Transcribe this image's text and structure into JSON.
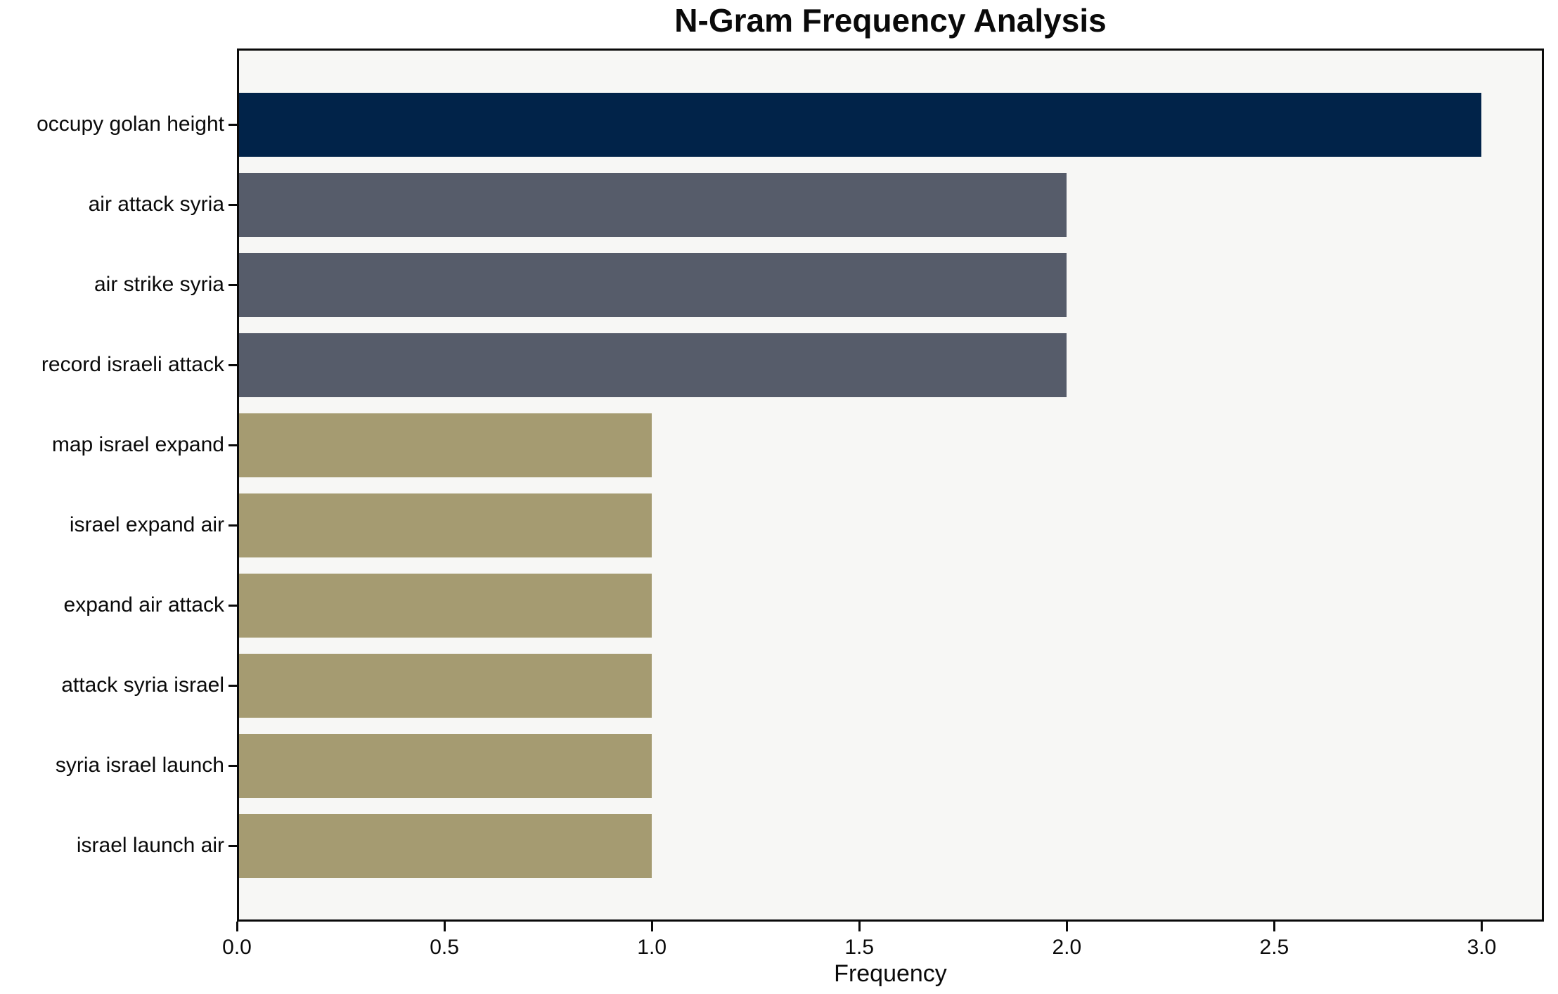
{
  "chart_data": {
    "type": "bar",
    "orientation": "horizontal",
    "title": "N-Gram Frequency Analysis",
    "xlabel": "Frequency",
    "ylabel": "",
    "categories": [
      "occupy golan height",
      "air attack syria",
      "air strike syria",
      "record israeli attack",
      "map israel expand",
      "israel expand air",
      "expand air attack",
      "attack syria israel",
      "syria israel launch",
      "israel launch air"
    ],
    "values": [
      3,
      2,
      2,
      2,
      1,
      1,
      1,
      1,
      1,
      1
    ],
    "bar_colors": [
      "#012349",
      "#565c6a",
      "#565c6a",
      "#565c6a",
      "#a59b71",
      "#a59b71",
      "#a59b71",
      "#a59b71",
      "#a59b71",
      "#a59b71"
    ],
    "xlim": [
      0,
      3.15
    ],
    "xticks": [
      0,
      0.5,
      1,
      1.5,
      2,
      2.5,
      3
    ],
    "xtick_labels": [
      "0.0",
      "0.5",
      "1.0",
      "1.5",
      "2.0",
      "2.5",
      "3.0"
    ],
    "grid": false,
    "legend": null,
    "colors": {
      "plot_background": "#f7f7f5",
      "figure_background": "#ffffff",
      "frame": "#0a0a0a",
      "text": "#0a0a0a"
    }
  }
}
